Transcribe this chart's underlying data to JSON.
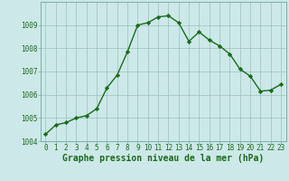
{
  "x": [
    0,
    1,
    2,
    3,
    4,
    5,
    6,
    7,
    8,
    9,
    10,
    11,
    12,
    13,
    14,
    15,
    16,
    17,
    18,
    19,
    20,
    21,
    22,
    23
  ],
  "y": [
    1004.3,
    1004.7,
    1004.8,
    1005.0,
    1005.1,
    1005.4,
    1006.3,
    1006.85,
    1007.85,
    1009.0,
    1009.1,
    1009.35,
    1009.4,
    1009.1,
    1008.3,
    1008.7,
    1008.35,
    1008.1,
    1007.75,
    1007.1,
    1006.8,
    1006.15,
    1006.2,
    1006.45
  ],
  "line_color": "#1a6b1a",
  "marker": "D",
  "marker_size": 2.2,
  "line_width": 1.0,
  "bg_color": "#cce8e8",
  "grid_color": "#9dbfbf",
  "xlabel": "Graphe pression niveau de la mer (hPa)",
  "xlabel_fontsize": 7,
  "xlabel_color": "#1a6b1a",
  "ylim": [
    1004,
    1010
  ],
  "xlim_min": -0.5,
  "xlim_max": 23.5,
  "yticks": [
    1004,
    1005,
    1006,
    1007,
    1008,
    1009
  ],
  "xticks": [
    0,
    1,
    2,
    3,
    4,
    5,
    6,
    7,
    8,
    9,
    10,
    11,
    12,
    13,
    14,
    15,
    16,
    17,
    18,
    19,
    20,
    21,
    22,
    23
  ],
  "tick_fontsize": 5.5,
  "tick_color": "#1a6b1a",
  "spine_color": "#7aadad"
}
